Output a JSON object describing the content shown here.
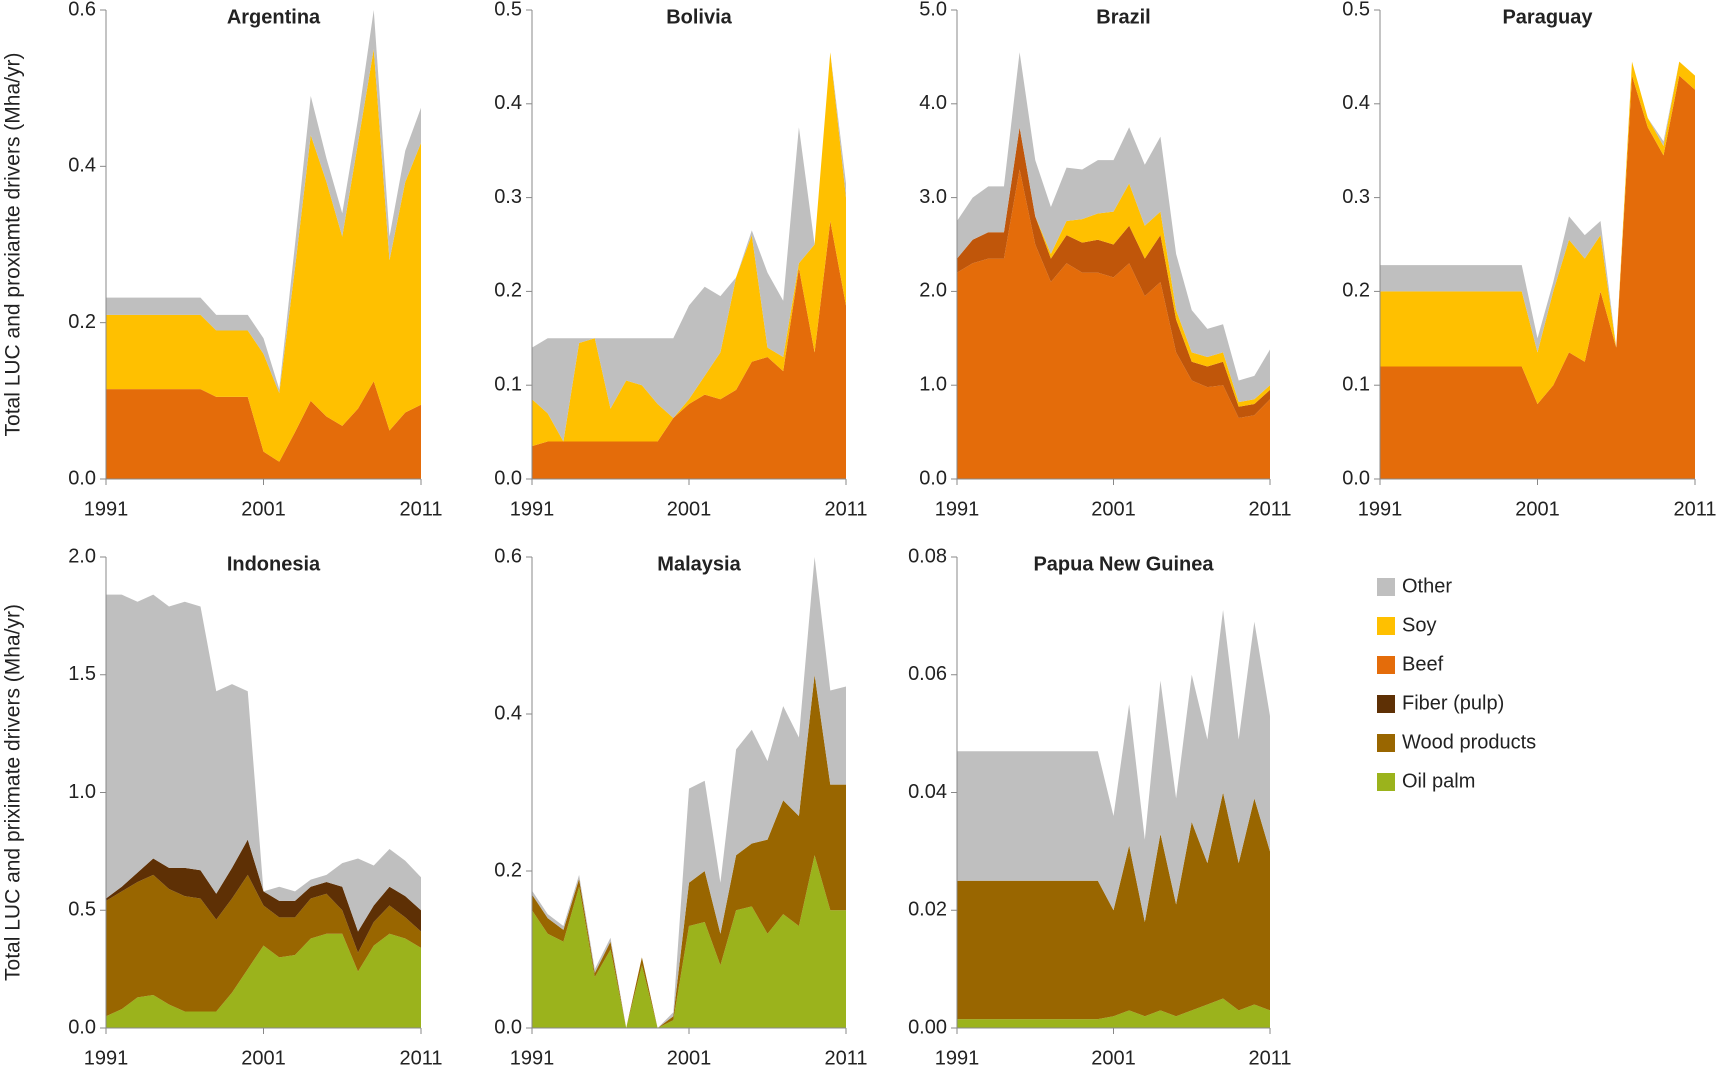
{
  "chart_data": [
    {
      "type": "area",
      "title": "Argentina",
      "y_label": "Total LUC and proxiamte drivers (Mha/yr)",
      "x": [
        1991,
        1992,
        1993,
        1994,
        1995,
        1996,
        1997,
        1998,
        1999,
        2000,
        2001,
        2002,
        2003,
        2004,
        2005,
        2006,
        2007,
        2008,
        2009,
        2010,
        2011
      ],
      "xlim": [
        1991,
        2011
      ],
      "xticks": [
        1991,
        2001,
        2011
      ],
      "ylim": [
        0,
        0.6
      ],
      "yticks": [
        {
          "value": 0,
          "label": "0.0"
        },
        0.2,
        0.4,
        0.6
      ],
      "series": [
        {
          "name": "Beef",
          "color": "#e46c0a",
          "values": [
            0.115,
            0.115,
            0.115,
            0.115,
            0.115,
            0.115,
            0.115,
            0.105,
            0.105,
            0.105,
            0.035,
            0.022,
            0.06,
            0.1,
            0.08,
            0.068,
            0.09,
            0.125,
            0.062,
            0.085,
            0.095
          ]
        },
        {
          "name": "Soy",
          "color": "#ffc000",
          "values": [
            0.095,
            0.095,
            0.095,
            0.095,
            0.095,
            0.095,
            0.095,
            0.085,
            0.085,
            0.085,
            0.125,
            0.088,
            0.21,
            0.34,
            0.3,
            0.242,
            0.34,
            0.425,
            0.218,
            0.295,
            0.335
          ]
        },
        {
          "name": "Other",
          "color": "#bfbfbf",
          "values": [
            0.022,
            0.022,
            0.022,
            0.022,
            0.022,
            0.022,
            0.022,
            0.02,
            0.02,
            0.02,
            0.02,
            0.005,
            0.03,
            0.05,
            0.03,
            0.03,
            0.03,
            0.05,
            0.03,
            0.04,
            0.045
          ]
        }
      ]
    },
    {
      "type": "area",
      "title": "Bolivia",
      "x": [
        1991,
        1992,
        1993,
        1994,
        1995,
        1996,
        1997,
        1998,
        1999,
        2000,
        2001,
        2002,
        2003,
        2004,
        2005,
        2006,
        2007,
        2008,
        2009,
        2010,
        2011
      ],
      "xlim": [
        1991,
        2011
      ],
      "xticks": [
        1991,
        2001,
        2011
      ],
      "ylim": [
        0,
        0.5
      ],
      "yticks": [
        {
          "value": 0,
          "label": "0.0"
        },
        0.1,
        0.2,
        0.3,
        0.4,
        0.5
      ],
      "series": [
        {
          "name": "Beef",
          "color": "#e46c0a",
          "values": [
            0.035,
            0.04,
            0.04,
            0.04,
            0.04,
            0.04,
            0.04,
            0.04,
            0.04,
            0.065,
            0.08,
            0.09,
            0.085,
            0.095,
            0.125,
            0.13,
            0.115,
            0.225,
            0.135,
            0.275,
            0.185
          ]
        },
        {
          "name": "Soy",
          "color": "#ffc000",
          "values": [
            0.05,
            0.03,
            0,
            0.105,
            0.11,
            0.035,
            0.065,
            0.06,
            0.04,
            0,
            0.005,
            0.02,
            0.05,
            0.12,
            0.135,
            0.01,
            0.015,
            0.005,
            0.115,
            0.18,
            0.115
          ]
        },
        {
          "name": "Other",
          "color": "#bfbfbf",
          "values": [
            0.055,
            0.08,
            0.11,
            0.005,
            0,
            0.075,
            0.045,
            0.05,
            0.07,
            0.085,
            0.1,
            0.095,
            0.06,
            0,
            0.005,
            0.08,
            0.06,
            0.145,
            0,
            0,
            0.015
          ]
        }
      ]
    },
    {
      "type": "area",
      "title": "Brazil",
      "x": [
        1991,
        1992,
        1993,
        1994,
        1995,
        1996,
        1997,
        1998,
        1999,
        2000,
        2001,
        2002,
        2003,
        2004,
        2005,
        2006,
        2007,
        2008,
        2009,
        2010,
        2011
      ],
      "xlim": [
        1991,
        2011
      ],
      "xticks": [
        1991,
        2001,
        2011
      ],
      "ylim": [
        0,
        5
      ],
      "yticks": [
        {
          "value": 0,
          "label": "0.0"
        },
        {
          "value": 1,
          "label": "1.0"
        },
        {
          "value": 2,
          "label": "2.0"
        },
        {
          "value": 3,
          "label": "3.0"
        },
        {
          "value": 4,
          "label": "4.0"
        },
        {
          "value": 5,
          "label": "5.0"
        }
      ],
      "series": [
        {
          "name": "Beef",
          "color": "#e46c0a",
          "values": [
            2.2,
            2.3,
            2.35,
            2.35,
            3.3,
            2.5,
            2.1,
            2.3,
            2.2,
            2.2,
            2.15,
            2.3,
            1.95,
            2.1,
            1.35,
            1.05,
            0.98,
            1.0,
            0.65,
            0.68,
            0.85
          ]
        },
        {
          "name": "Wood products",
          "color": "#c0560a",
          "values": [
            0.15,
            0.25,
            0.28,
            0.28,
            0.45,
            0.3,
            0.25,
            0.3,
            0.32,
            0.35,
            0.35,
            0.4,
            0.4,
            0.5,
            0.35,
            0.2,
            0.22,
            0.25,
            0.12,
            0.12,
            0.1
          ]
        },
        {
          "name": "Soy",
          "color": "#ffc000",
          "values": [
            0,
            0,
            0,
            0,
            0,
            0,
            0.05,
            0.15,
            0.25,
            0.28,
            0.35,
            0.45,
            0.35,
            0.25,
            0.1,
            0.1,
            0.1,
            0.1,
            0.05,
            0.05,
            0.05
          ]
        },
        {
          "name": "Other",
          "color": "#bfbfbf",
          "values": [
            0.4,
            0.45,
            0.49,
            0.49,
            0.8,
            0.6,
            0.5,
            0.57,
            0.53,
            0.57,
            0.55,
            0.6,
            0.65,
            0.8,
            0.6,
            0.45,
            0.3,
            0.3,
            0.23,
            0.25,
            0.38
          ]
        }
      ]
    },
    {
      "type": "area",
      "title": "Paraguay",
      "x": [
        1991,
        1992,
        1993,
        1994,
        1995,
        1996,
        1997,
        1998,
        1999,
        2000,
        2001,
        2002,
        2003,
        2004,
        2005,
        2006,
        2007,
        2008,
        2009,
        2010,
        2011
      ],
      "xlim": [
        1991,
        2011
      ],
      "xticks": [
        1991,
        2001,
        2011
      ],
      "ylim": [
        0,
        0.5
      ],
      "yticks": [
        {
          "value": 0,
          "label": "0.0"
        },
        0.1,
        0.2,
        0.3,
        0.4,
        0.5
      ],
      "series": [
        {
          "name": "Beef",
          "color": "#e46c0a",
          "values": [
            0.12,
            0.12,
            0.12,
            0.12,
            0.12,
            0.12,
            0.12,
            0.12,
            0.12,
            0.12,
            0.08,
            0.1,
            0.135,
            0.125,
            0.2,
            0.14,
            0.43,
            0.375,
            0.345,
            0.43,
            0.415
          ]
        },
        {
          "name": "Soy",
          "color": "#ffc000",
          "values": [
            0.08,
            0.08,
            0.08,
            0.08,
            0.08,
            0.08,
            0.08,
            0.08,
            0.08,
            0.08,
            0.055,
            0.1,
            0.12,
            0.11,
            0.06,
            0,
            0.015,
            0.01,
            0.01,
            0.015,
            0.015
          ]
        },
        {
          "name": "Other",
          "color": "#bfbfbf",
          "values": [
            0.028,
            0.028,
            0.028,
            0.028,
            0.028,
            0.028,
            0.028,
            0.028,
            0.028,
            0.028,
            0.015,
            0.01,
            0.025,
            0.025,
            0.015,
            0,
            0,
            0,
            0.005,
            0,
            0
          ]
        }
      ]
    },
    {
      "type": "area",
      "title": "Indonesia",
      "y_label": "Total LUC and priximate drivers (Mha/yr)",
      "x": [
        1991,
        1992,
        1993,
        1994,
        1995,
        1996,
        1997,
        1998,
        1999,
        2000,
        2001,
        2002,
        2003,
        2004,
        2005,
        2006,
        2007,
        2008,
        2009,
        2010,
        2011
      ],
      "xlim": [
        1991,
        2011
      ],
      "xticks": [
        1991,
        2001,
        2011
      ],
      "ylim": [
        0,
        2
      ],
      "yticks": [
        {
          "value": 0,
          "label": "0.0"
        },
        0.5,
        {
          "value": 1,
          "label": "1.0"
        },
        1.5,
        {
          "value": 2,
          "label": "2.0"
        }
      ],
      "series": [
        {
          "name": "Oil palm",
          "color": "#9bb31c",
          "values": [
            0.05,
            0.08,
            0.13,
            0.14,
            0.1,
            0.07,
            0.07,
            0.07,
            0.15,
            0.25,
            0.35,
            0.3,
            0.31,
            0.38,
            0.4,
            0.4,
            0.24,
            0.35,
            0.4,
            0.38,
            0.34
          ]
        },
        {
          "name": "Wood products",
          "color": "#996600",
          "values": [
            0.49,
            0.5,
            0.49,
            0.51,
            0.49,
            0.49,
            0.48,
            0.39,
            0.4,
            0.4,
            0.17,
            0.17,
            0.16,
            0.17,
            0.17,
            0.1,
            0.08,
            0.1,
            0.12,
            0.09,
            0.07
          ]
        },
        {
          "name": "Fiber (pulp)",
          "color": "#5e3005",
          "values": [
            0.01,
            0.02,
            0.04,
            0.07,
            0.09,
            0.12,
            0.12,
            0.11,
            0.13,
            0.15,
            0.06,
            0.07,
            0.07,
            0.05,
            0.05,
            0.1,
            0.09,
            0.07,
            0.08,
            0.09,
            0.09
          ]
        },
        {
          "name": "Other",
          "color": "#bfbfbf",
          "values": [
            1.29,
            1.24,
            1.15,
            1.12,
            1.11,
            1.13,
            1.12,
            0.86,
            0.78,
            0.63,
            0,
            0.06,
            0.04,
            0.03,
            0.03,
            0.1,
            0.31,
            0.17,
            0.16,
            0.15,
            0.14
          ]
        }
      ]
    },
    {
      "type": "area",
      "title": "Malaysia",
      "x": [
        1991,
        1992,
        1993,
        1994,
        1995,
        1996,
        1997,
        1998,
        1999,
        2000,
        2001,
        2002,
        2003,
        2004,
        2005,
        2006,
        2007,
        2008,
        2009,
        2010,
        2011
      ],
      "xlim": [
        1991,
        2011
      ],
      "xticks": [
        1991,
        2001,
        2011
      ],
      "ylim": [
        0,
        0.6
      ],
      "yticks": [
        {
          "value": 0,
          "label": "0.0"
        },
        0.2,
        0.4,
        0.6
      ],
      "series": [
        {
          "name": "Oil palm",
          "color": "#9bb31c",
          "values": [
            0.15,
            0.12,
            0.11,
            0.18,
            0.065,
            0.1,
            0,
            0.08,
            0,
            0.01,
            0.13,
            0.135,
            0.08,
            0.15,
            0.155,
            0.12,
            0.145,
            0.13,
            0.22,
            0.15,
            0.15
          ]
        },
        {
          "name": "Wood products",
          "color": "#996600",
          "values": [
            0.02,
            0.02,
            0.015,
            0.01,
            0.005,
            0.01,
            0,
            0.01,
            0,
            0.005,
            0.055,
            0.065,
            0.04,
            0.07,
            0.08,
            0.12,
            0.145,
            0.14,
            0.23,
            0.16,
            0.16
          ]
        },
        {
          "name": "Other",
          "color": "#bfbfbf",
          "values": [
            0.005,
            0.005,
            0.005,
            0.005,
            0.005,
            0.005,
            0,
            0,
            0,
            0.005,
            0.12,
            0.115,
            0.065,
            0.135,
            0.145,
            0.1,
            0.12,
            0.1,
            0.15,
            0.12,
            0.125
          ]
        }
      ]
    },
    {
      "type": "area",
      "title": "Papua New Guinea",
      "x": [
        1991,
        1992,
        1993,
        1994,
        1995,
        1996,
        1997,
        1998,
        1999,
        2000,
        2001,
        2002,
        2003,
        2004,
        2005,
        2006,
        2007,
        2008,
        2009,
        2010,
        2011
      ],
      "xlim": [
        1991,
        2011
      ],
      "xticks": [
        1991,
        2001,
        2011
      ],
      "ylim": [
        0,
        0.08
      ],
      "yticks": [
        {
          "value": 0,
          "label": "0.00"
        },
        0.02,
        0.04,
        0.06,
        0.08
      ],
      "series": [
        {
          "name": "Oil palm",
          "color": "#9bb31c",
          "values": [
            0.0015,
            0.0015,
            0.0015,
            0.0015,
            0.0015,
            0.0015,
            0.0015,
            0.0015,
            0.0015,
            0.0015,
            0.002,
            0.003,
            0.002,
            0.003,
            0.002,
            0.003,
            0.004,
            0.005,
            0.003,
            0.004,
            0.003
          ]
        },
        {
          "name": "Wood products",
          "color": "#996600",
          "values": [
            0.0235,
            0.0235,
            0.0235,
            0.0235,
            0.0235,
            0.0235,
            0.0235,
            0.0235,
            0.0235,
            0.0235,
            0.018,
            0.028,
            0.016,
            0.03,
            0.019,
            0.032,
            0.024,
            0.035,
            0.025,
            0.035,
            0.027
          ]
        },
        {
          "name": "Other",
          "color": "#bfbfbf",
          "values": [
            0.022,
            0.022,
            0.022,
            0.022,
            0.022,
            0.022,
            0.022,
            0.022,
            0.022,
            0.022,
            0.016,
            0.024,
            0.014,
            0.026,
            0.018,
            0.025,
            0.021,
            0.031,
            0.021,
            0.03,
            0.023
          ]
        }
      ]
    }
  ]
}
